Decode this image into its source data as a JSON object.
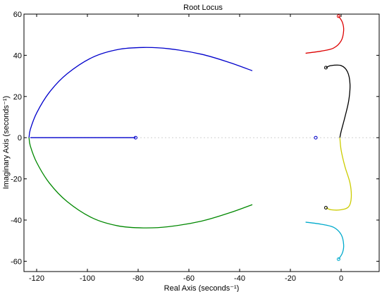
{
  "chart_data": {
    "type": "line",
    "title": "Root Locus",
    "xlabel": "Real Axis (seconds⁻¹)",
    "ylabel": "Imaginary Axis (seconds⁻¹)",
    "xlim": [
      -125,
      15
    ],
    "ylim": [
      -65,
      60
    ],
    "xticks": [
      -120,
      -100,
      -80,
      -60,
      -40,
      -20,
      0
    ],
    "yticks": [
      -60,
      -40,
      -20,
      0,
      20,
      40,
      60
    ],
    "xtick_labels": [
      "-120",
      "-100",
      "-80",
      "-60",
      "-40",
      "-20",
      "0"
    ],
    "ytick_labels": [
      "-60",
      "-40",
      "-20",
      "0",
      "20",
      "40",
      "60"
    ],
    "grid": false,
    "series": [
      {
        "color": "#0000cc",
        "points": [
          [
            -35,
            32.5
          ],
          [
            -44,
            36.5
          ],
          [
            -55,
            40.5
          ],
          [
            -68,
            43.2
          ],
          [
            -78,
            43.8
          ],
          [
            -88,
            42.8
          ],
          [
            -98,
            39
          ],
          [
            -108,
            31
          ],
          [
            -115,
            22
          ],
          [
            -120,
            12
          ],
          [
            -122.5,
            4
          ],
          [
            -123,
            0
          ]
        ]
      },
      {
        "color": "#0000cc",
        "points": [
          [
            -122.5,
            0
          ],
          [
            -81,
            0
          ]
        ]
      },
      {
        "color": "#008800",
        "points": [
          [
            -123,
            0
          ],
          [
            -122.5,
            -4
          ],
          [
            -120,
            -12
          ],
          [
            -115,
            -22
          ],
          [
            -108,
            -31
          ],
          [
            -98,
            -39
          ],
          [
            -88,
            -42.8
          ],
          [
            -78,
            -43.8
          ],
          [
            -68,
            -43.2
          ],
          [
            -55,
            -40.5
          ],
          [
            -44,
            -36.5
          ],
          [
            -35,
            -32.5
          ]
        ]
      },
      {
        "color": "#dd0000",
        "points": [
          [
            -1,
            59
          ],
          [
            0.5,
            56
          ],
          [
            1,
            52
          ],
          [
            0,
            47
          ],
          [
            -3,
            43.5
          ],
          [
            -8,
            42
          ],
          [
            -14,
            41
          ]
        ]
      },
      {
        "color": "#000000",
        "points": [
          [
            -6,
            34
          ],
          [
            -4,
            35
          ],
          [
            0,
            35
          ],
          [
            2.5,
            32
          ],
          [
            3.5,
            26
          ],
          [
            3,
            18
          ],
          [
            1.5,
            10
          ],
          [
            0,
            3
          ],
          [
            -0.5,
            0
          ]
        ]
      },
      {
        "color": "#cccc00",
        "points": [
          [
            -0.5,
            0
          ],
          [
            0,
            -6
          ],
          [
            1.5,
            -14
          ],
          [
            3.5,
            -22
          ],
          [
            4,
            -29
          ],
          [
            3,
            -33.5
          ],
          [
            0,
            -35
          ],
          [
            -4,
            -35
          ],
          [
            -6,
            -34
          ]
        ]
      },
      {
        "color": "#00aacc",
        "points": [
          [
            -14,
            -41
          ],
          [
            -8,
            -42
          ],
          [
            -3,
            -43.5
          ],
          [
            0,
            -47
          ],
          [
            1,
            -52
          ],
          [
            0.5,
            -56
          ],
          [
            -1,
            -59
          ]
        ]
      }
    ],
    "markers": [
      {
        "type": "pole",
        "color": "#0000cc",
        "x": -81,
        "y": 0
      },
      {
        "type": "pole",
        "color": "#0000cc",
        "x": -10,
        "y": 0
      },
      {
        "type": "pole",
        "color": "#000000",
        "x": -6,
        "y": 34
      },
      {
        "type": "pole",
        "color": "#000000",
        "x": -6,
        "y": -34
      },
      {
        "type": "pole",
        "color": "#dd0000",
        "x": -1,
        "y": 59
      },
      {
        "type": "pole",
        "color": "#00aacc",
        "x": -1,
        "y": -59
      }
    ]
  }
}
